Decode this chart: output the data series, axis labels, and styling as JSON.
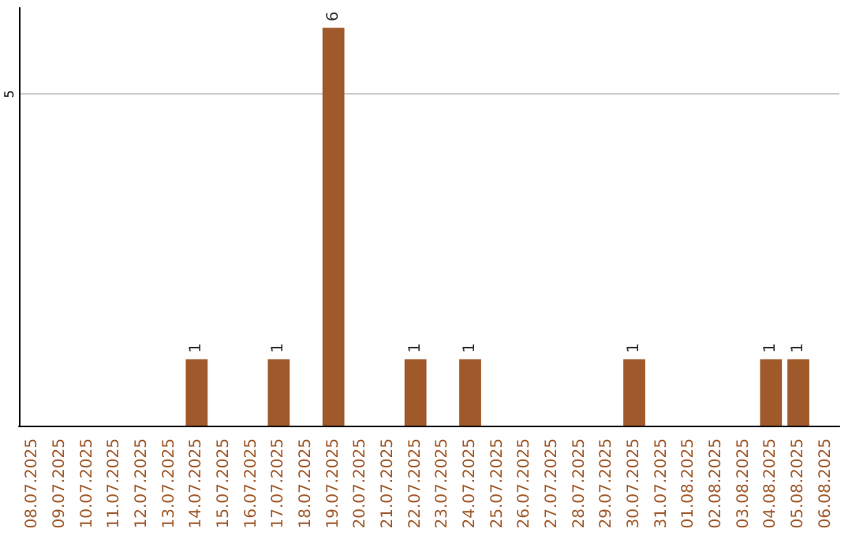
{
  "chart_data": {
    "type": "bar",
    "categories": [
      "08.07.2025",
      "09.07.2025",
      "10.07.2025",
      "11.07.2025",
      "12.07.2025",
      "13.07.2025",
      "14.07.2025",
      "15.07.2025",
      "16.07.2025",
      "17.07.2025",
      "18.07.2025",
      "19.07.2025",
      "20.07.2025",
      "21.07.2025",
      "22.07.2025",
      "23.07.2025",
      "24.07.2025",
      "25.07.2025",
      "26.07.2025",
      "27.07.2025",
      "28.07.2025",
      "29.07.2025",
      "30.07.2025",
      "31.07.2025",
      "01.08.2025",
      "02.08.2025",
      "03.08.2025",
      "04.08.2025",
      "05.08.2025",
      "06.08.2025"
    ],
    "values": [
      0,
      0,
      0,
      0,
      0,
      0,
      1,
      0,
      0,
      1,
      0,
      6,
      0,
      0,
      1,
      0,
      1,
      0,
      0,
      0,
      0,
      0,
      1,
      0,
      0,
      0,
      0,
      1,
      1,
      0
    ],
    "value_labels": [
      null,
      null,
      null,
      null,
      null,
      null,
      "1",
      null,
      null,
      "1",
      null,
      "6",
      null,
      null,
      "1",
      null,
      "1",
      null,
      null,
      null,
      null,
      null,
      "1",
      null,
      null,
      null,
      null,
      "1",
      "1",
      null
    ],
    "color": "#a0592a",
    "ylim": [
      0,
      6.3
    ],
    "yticks": [
      5
    ],
    "grid": "y"
  }
}
